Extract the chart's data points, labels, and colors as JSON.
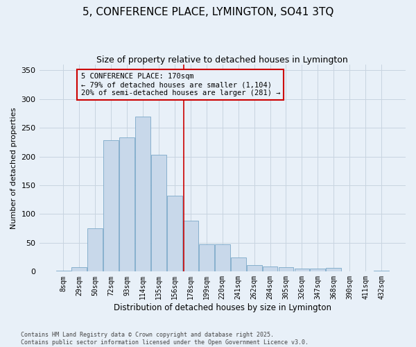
{
  "title": "5, CONFERENCE PLACE, LYMINGTON, SO41 3TQ",
  "subtitle": "Size of property relative to detached houses in Lymington",
  "xlabel": "Distribution of detached houses by size in Lymington",
  "ylabel": "Number of detached properties",
  "categories": [
    "8sqm",
    "29sqm",
    "50sqm",
    "72sqm",
    "93sqm",
    "114sqm",
    "135sqm",
    "156sqm",
    "178sqm",
    "199sqm",
    "220sqm",
    "241sqm",
    "262sqm",
    "284sqm",
    "305sqm",
    "326sqm",
    "347sqm",
    "368sqm",
    "390sqm",
    "411sqm",
    "432sqm"
  ],
  "values": [
    2,
    8,
    75,
    228,
    233,
    270,
    203,
    132,
    88,
    48,
    47,
    24,
    11,
    9,
    8,
    5,
    5,
    6,
    0,
    0,
    2
  ],
  "bar_color": "#c8d8ea",
  "bar_edge_color": "#7aa8c8",
  "grid_color": "#c8d4e0",
  "bg_color": "#e8f0f8",
  "vline_color": "#cc0000",
  "vline_pos": 7.57,
  "annotation_text": "5 CONFERENCE PLACE: 170sqm\n← 79% of detached houses are smaller (1,104)\n20% of semi-detached houses are larger (281) →",
  "annotation_box_color": "#cc0000",
  "footnote": "Contains HM Land Registry data © Crown copyright and database right 2025.\nContains public sector information licensed under the Open Government Licence v3.0.",
  "ylim": [
    0,
    360
  ],
  "yticks": [
    0,
    50,
    100,
    150,
    200,
    250,
    300,
    350
  ],
  "title_fontsize": 11,
  "subtitle_fontsize": 9,
  "xlabel_fontsize": 8.5,
  "ylabel_fontsize": 8,
  "footnote_fontsize": 6,
  "annot_fontsize": 7.5,
  "xtick_fontsize": 7,
  "ytick_fontsize": 8
}
